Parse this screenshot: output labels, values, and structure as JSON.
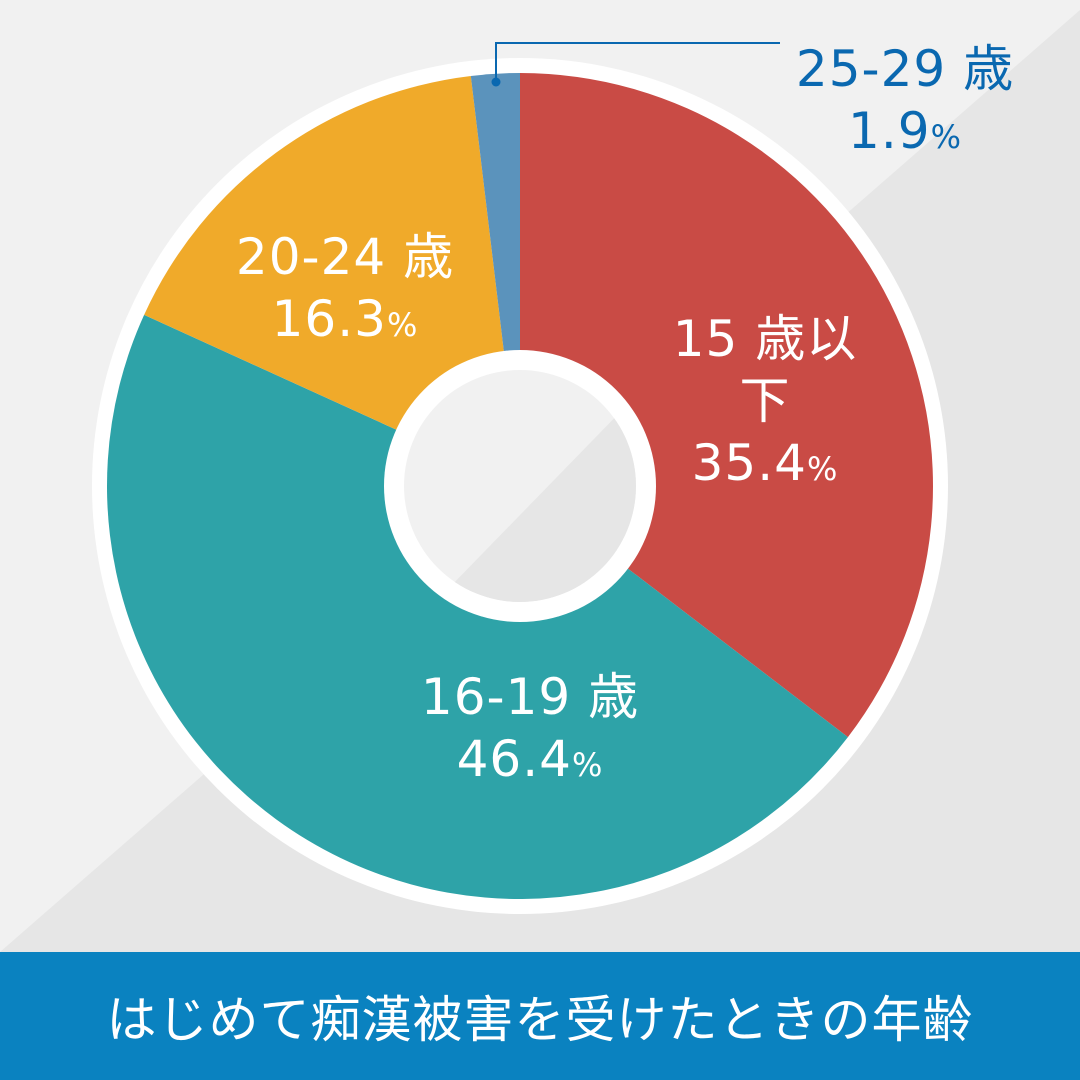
{
  "chart_data": {
    "type": "pie",
    "donut": true,
    "start": "top, clockwise",
    "title": "はじめて痴漢被害を受けたときの年齢",
    "slices": [
      {
        "label": "15 歳以下",
        "value": 35.4,
        "display": "35.4",
        "color": "#c94b45"
      },
      {
        "label": "16-19 歳",
        "value": 46.4,
        "display": "46.4",
        "color": "#2ea3a8"
      },
      {
        "label": "20-24 歳",
        "value": 16.3,
        "display": "16.3",
        "color": "#f0aa2a"
      },
      {
        "label": "25-29 歳",
        "value": 1.9,
        "display": "1.9",
        "color": "#5b93bc"
      }
    ],
    "unit": "%",
    "callout_color": "#0a68b0"
  }
}
